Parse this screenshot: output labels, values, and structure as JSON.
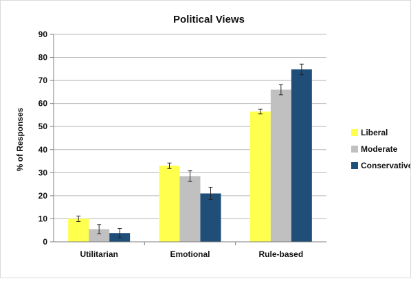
{
  "chart_data": {
    "type": "bar",
    "title": "Political Views",
    "xlabel": "",
    "ylabel": "% of Responses",
    "categories": [
      "Utilitarian",
      "Emotional",
      "Rule-based"
    ],
    "ylim": [
      0,
      90
    ],
    "yticks": [
      0,
      10,
      20,
      30,
      40,
      50,
      60,
      70,
      80,
      90
    ],
    "grid": true,
    "legend_position": "right",
    "series": [
      {
        "name": "Liberal",
        "color": "#ffff4d",
        "values": [
          10,
          33,
          56.5
        ],
        "errors": [
          1.2,
          1.2,
          1.0
        ]
      },
      {
        "name": "Moderate",
        "color": "#c0c0c0",
        "values": [
          5.5,
          28.5,
          66
        ],
        "errors": [
          2.0,
          2.3,
          2.2
        ]
      },
      {
        "name": "Conservative",
        "color": "#1f4e79",
        "values": [
          3.8,
          21,
          74.8
        ],
        "errors": [
          2.0,
          2.7,
          2.3
        ]
      }
    ]
  }
}
